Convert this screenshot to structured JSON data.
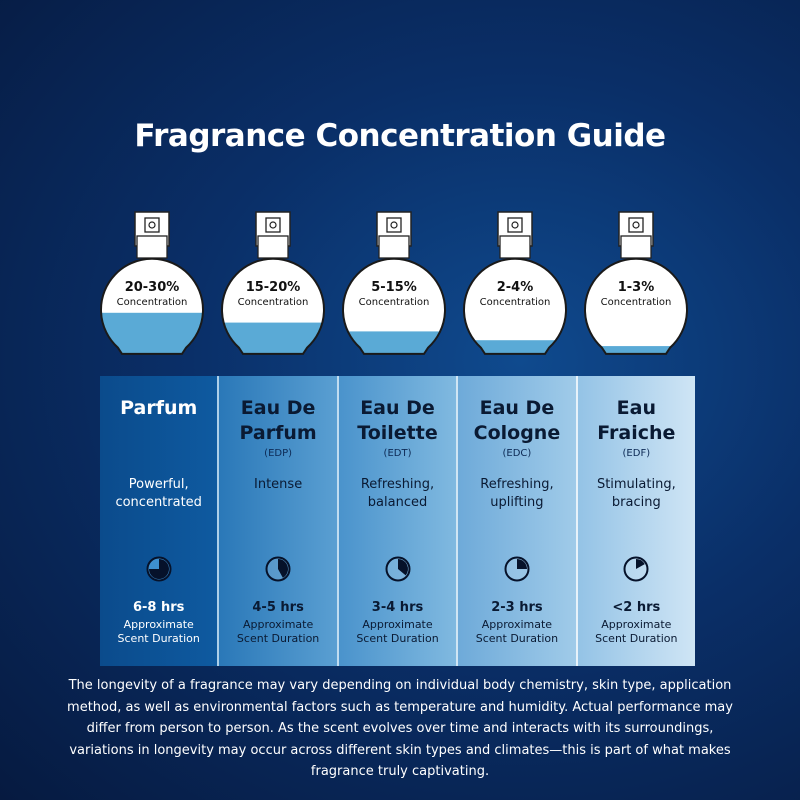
{
  "title": "Fragrance Concentration Guide",
  "colors": {
    "liquid": "#5aaad6",
    "bottle": "#ffffff",
    "text_dark": "#0a1a33"
  },
  "types": [
    {
      "concentration": "20-30%",
      "concentration_label": "Concentration",
      "fill_level": 0.42,
      "name_line1": "Parfum",
      "name_line2": "",
      "abbr": "",
      "desc_line1": "Powerful,",
      "desc_line2": "concentrated",
      "hours": "6-8 hrs",
      "approx_line1": "Approximate",
      "approx_line2": "Scent Duration",
      "clock_fraction": 0.75
    },
    {
      "concentration": "15-20%",
      "concentration_label": "Concentration",
      "fill_level": 0.32,
      "name_line1": "Eau De",
      "name_line2": "Parfum",
      "abbr": "(EDP)",
      "desc_line1": "Intense",
      "desc_line2": "",
      "hours": "4-5 hrs",
      "approx_line1": "Approximate",
      "approx_line2": "Scent Duration",
      "clock_fraction": 0.42
    },
    {
      "concentration": "5-15%",
      "concentration_label": "Concentration",
      "fill_level": 0.23,
      "name_line1": "Eau De",
      "name_line2": "Toilette",
      "abbr": "(EDT)",
      "desc_line1": "Refreshing,",
      "desc_line2": "balanced",
      "hours": "3-4 hrs",
      "approx_line1": "Approximate",
      "approx_line2": "Scent Duration",
      "clock_fraction": 0.36
    },
    {
      "concentration": "2-4%",
      "concentration_label": "Concentration",
      "fill_level": 0.14,
      "name_line1": "Eau De",
      "name_line2": "Cologne",
      "abbr": "(EDC)",
      "desc_line1": "Refreshing,",
      "desc_line2": "uplifting",
      "hours": "2-3 hrs",
      "approx_line1": "Approximate",
      "approx_line2": "Scent Duration",
      "clock_fraction": 0.25
    },
    {
      "concentration": "1-3%",
      "concentration_label": "Concentration",
      "fill_level": 0.08,
      "name_line1": "Eau",
      "name_line2": "Fraiche",
      "abbr": "(EDF)",
      "desc_line1": "Stimulating,",
      "desc_line2": "bracing",
      "hours": "<2 hrs",
      "approx_line1": "Approximate",
      "approx_line2": "Scent Duration",
      "clock_fraction": 0.17
    }
  ],
  "note": "The longevity of a fragrance may vary depending on individual body chemistry, skin type, application method, as well as environmental factors such as temperature and humidity. Actual performance may differ from person to person. As the scent evolves over time and interacts with its surroundings, variations in longevity may occur across different skin types and climates—this is part of what makes fragrance truly captivating."
}
